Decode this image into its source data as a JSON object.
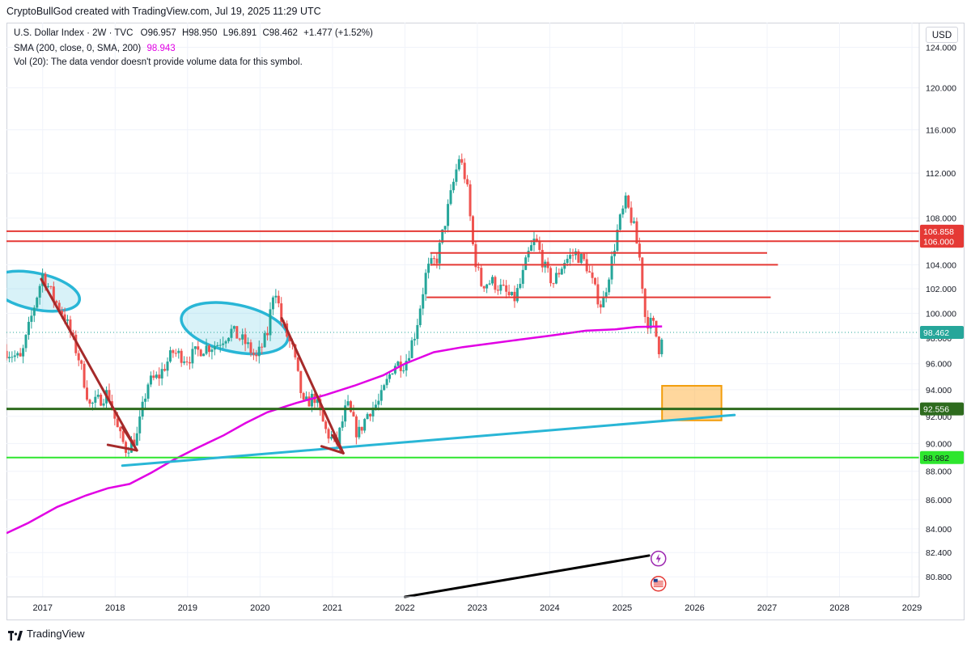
{
  "header": {
    "caption": "CryptoBullGod created with TradingView.com, Jul 19, 2025 11:29 UTC"
  },
  "legend": {
    "symbol": "U.S. Dollar Index · 2W · TVC",
    "open_label": "O",
    "open": "96.957",
    "high_label": "H",
    "high": "98.950",
    "low_label": "L",
    "low": "96.891",
    "close_label": "C",
    "close": "98.462",
    "change": "+1.477 (+1.52%)",
    "sma_label": "SMA (200, close, 0, SMA, 200)",
    "sma_value": "98.943",
    "vol_label": "Vol (20): The data vendor doesn't provide volume data for this symbol."
  },
  "currency_button": "USD",
  "footer": {
    "brand": "TradingView"
  },
  "colors": {
    "up": "#26a69a",
    "down": "#ef5350",
    "sma": "#e100e4",
    "resistance": "#e53935",
    "support_dark": "#2e6b1e",
    "support_bright": "#2ee62e",
    "trendline": "#29b6d6",
    "downtrend": "#a52a2a",
    "target_box": "#ffb74d"
  },
  "chart_data": {
    "type": "candlestick",
    "x_axis": {
      "range": [
        2016.5,
        2029.1
      ],
      "ticks": [
        "2017",
        "2018",
        "2019",
        "2020",
        "2021",
        "2022",
        "2023",
        "2024",
        "2025",
        "2026",
        "2027",
        "2028",
        "2029"
      ]
    },
    "y_axis": {
      "range": [
        79.5,
        126.5
      ],
      "scale": "log",
      "ticks": [
        "80.800",
        "82.400",
        "84.000",
        "86.000",
        "88.000",
        "90.000",
        "92.000",
        "94.000",
        "96.000",
        "98.000",
        "100.000",
        "102.000",
        "104.000",
        "108.000",
        "112.000",
        "116.000",
        "120.000",
        "124.000"
      ]
    },
    "price_path": [
      [
        2016.5,
        97.0
      ],
      [
        2016.7,
        96.3
      ],
      [
        2016.9,
        101.0
      ],
      [
        2017.0,
        103.2
      ],
      [
        2017.15,
        101.2
      ],
      [
        2017.3,
        99.8
      ],
      [
        2017.5,
        96.4
      ],
      [
        2017.65,
        92.8
      ],
      [
        2017.75,
        93.1
      ],
      [
        2017.9,
        93.8
      ],
      [
        2018.05,
        90.7
      ],
      [
        2018.15,
        89.6
      ],
      [
        2018.3,
        90.5
      ],
      [
        2018.45,
        94.5
      ],
      [
        2018.6,
        95.0
      ],
      [
        2018.8,
        96.9
      ],
      [
        2019.0,
        96.4
      ],
      [
        2019.2,
        97.2
      ],
      [
        2019.4,
        97.5
      ],
      [
        2019.6,
        98.6
      ],
      [
        2019.8,
        97.6
      ],
      [
        2019.95,
        96.4
      ],
      [
        2020.1,
        98.3
      ],
      [
        2020.2,
        102.5
      ],
      [
        2020.3,
        99.2
      ],
      [
        2020.45,
        97.1
      ],
      [
        2020.6,
        92.8
      ],
      [
        2020.75,
        93.5
      ],
      [
        2020.9,
        91.0
      ],
      [
        2021.05,
        89.8
      ],
      [
        2021.2,
        92.9
      ],
      [
        2021.35,
        90.6
      ],
      [
        2021.5,
        92.4
      ],
      [
        2021.65,
        93.1
      ],
      [
        2021.85,
        96.0
      ],
      [
        2022.0,
        96.0
      ],
      [
        2022.15,
        98.6
      ],
      [
        2022.3,
        103.5
      ],
      [
        2022.45,
        104.6
      ],
      [
        2022.6,
        109.0
      ],
      [
        2022.75,
        113.5
      ],
      [
        2022.85,
        111.2
      ],
      [
        2022.95,
        105.0
      ],
      [
        2023.05,
        102.4
      ],
      [
        2023.2,
        102.6
      ],
      [
        2023.35,
        101.9
      ],
      [
        2023.5,
        101.0
      ],
      [
        2023.6,
        102.5
      ],
      [
        2023.7,
        104.8
      ],
      [
        2023.8,
        106.2
      ],
      [
        2023.95,
        103.4
      ],
      [
        2024.05,
        102.5
      ],
      [
        2024.2,
        104.3
      ],
      [
        2024.35,
        105.0
      ],
      [
        2024.5,
        104.1
      ],
      [
        2024.62,
        101.9
      ],
      [
        2024.72,
        100.5
      ],
      [
        2024.85,
        104.2
      ],
      [
        2024.95,
        107.4
      ],
      [
        2025.05,
        109.4
      ],
      [
        2025.15,
        107.5
      ],
      [
        2025.25,
        104.2
      ],
      [
        2025.32,
        99.5
      ],
      [
        2025.45,
        98.9
      ],
      [
        2025.5,
        97.0
      ],
      [
        2025.55,
        98.46
      ]
    ],
    "sma_200": [
      [
        2016.5,
        83.7
      ],
      [
        2016.8,
        84.4
      ],
      [
        2017.2,
        85.5
      ],
      [
        2017.6,
        86.3
      ],
      [
        2017.9,
        86.8
      ],
      [
        2018.2,
        87.1
      ],
      [
        2018.5,
        87.9
      ],
      [
        2018.8,
        88.8
      ],
      [
        2019.1,
        89.6
      ],
      [
        2019.5,
        90.6
      ],
      [
        2019.8,
        91.5
      ],
      [
        2020.1,
        92.3
      ],
      [
        2020.5,
        93.0
      ],
      [
        2020.9,
        93.6
      ],
      [
        2021.3,
        94.3
      ],
      [
        2021.7,
        95.1
      ],
      [
        2022.0,
        96.0
      ],
      [
        2022.4,
        96.9
      ],
      [
        2022.8,
        97.3
      ],
      [
        2023.2,
        97.6
      ],
      [
        2023.6,
        97.9
      ],
      [
        2024.0,
        98.2
      ],
      [
        2024.5,
        98.6
      ],
      [
        2024.9,
        98.7
      ],
      [
        2025.2,
        98.9
      ],
      [
        2025.55,
        98.94
      ]
    ],
    "horizontal_levels": [
      {
        "price": 106.858,
        "label": "106.858",
        "x_start": 2016.5,
        "x_end": 2029.1,
        "color": "#e53935"
      },
      {
        "price": 106.0,
        "label": "106.000",
        "x_start": 2016.5,
        "x_end": 2029.1,
        "color": "#e53935"
      },
      {
        "price": 105.0,
        "label": "",
        "x_start": 2022.35,
        "x_end": 2027.0,
        "color": "#e53935"
      },
      {
        "price": 104.0,
        "label": "",
        "x_start": 2022.35,
        "x_end": 2027.15,
        "color": "#e53935"
      },
      {
        "price": 101.3,
        "label": "",
        "x_start": 2022.3,
        "x_end": 2027.05,
        "color": "#e53935"
      },
      {
        "price": 92.556,
        "label": "92.556",
        "x_start": 2016.5,
        "x_end": 2029.1,
        "color": "#2e6b1e"
      },
      {
        "price": 88.982,
        "label": "88.982",
        "x_start": 2016.5,
        "x_end": 2029.1,
        "color": "#2ee62e"
      }
    ],
    "last_price_label": "98.462",
    "trend_lines": [
      {
        "from": [
          2018.1,
          88.4
        ],
        "to": [
          2026.55,
          92.1
        ],
        "color": "#29b6d6"
      },
      {
        "from": [
          2022.0,
          79.5
        ],
        "to": [
          2025.37,
          82.2
        ],
        "color": "#000000"
      }
    ],
    "downtrend_arrows": [
      {
        "from": [
          2016.98,
          102.8
        ],
        "to": [
          2018.3,
          89.5
        ]
      },
      {
        "from": [
          2017.9,
          89.9
        ],
        "to": [
          2018.3,
          89.5
        ]
      },
      {
        "from": [
          2018.1,
          91.2
        ],
        "to": [
          2018.3,
          89.5
        ]
      },
      {
        "from": [
          2020.3,
          99.6
        ],
        "to": [
          2021.15,
          89.3
        ]
      },
      {
        "from": [
          2020.85,
          89.8
        ],
        "to": [
          2021.15,
          89.3
        ]
      },
      {
        "from": [
          2021.0,
          90.6
        ],
        "to": [
          2021.15,
          89.3
        ]
      }
    ],
    "ellipses": [
      {
        "center": [
          2016.9,
          101.8
        ],
        "rx_years": 0.62,
        "ry_price": 1.5
      },
      {
        "center": [
          2019.65,
          98.8
        ],
        "rx_years": 0.75,
        "ry_price": 1.9
      }
    ],
    "target_box": {
      "x": [
        2025.55,
        2026.37
      ],
      "price": [
        91.7,
        94.3
      ]
    }
  }
}
